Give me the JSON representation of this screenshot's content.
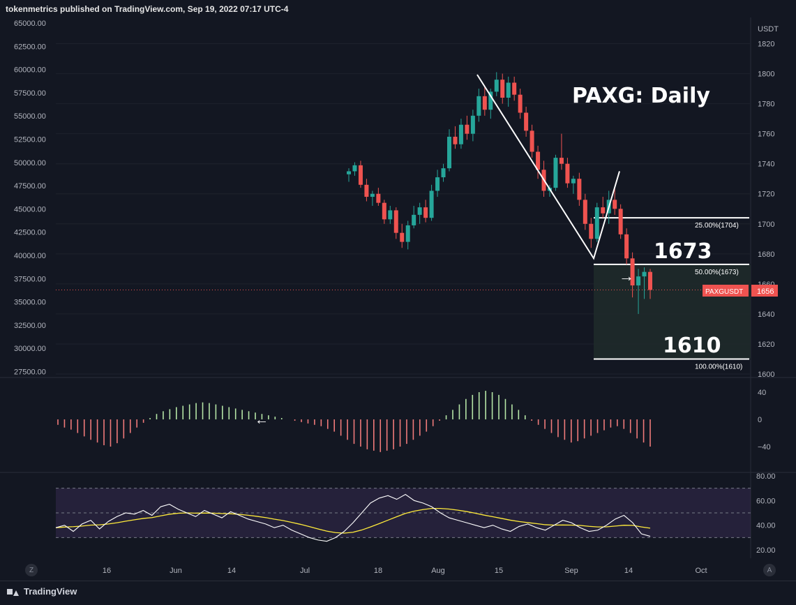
{
  "publisher_line": "tokenmetrics published on TradingView.com, Sep 19, 2022 07:17 UTC-4",
  "chart_title": "PAXG: Daily",
  "currency_label": "USDT",
  "symbol_tag": "PAXGUSDT",
  "last_price": "1656",
  "big_labels": {
    "upper": "1673",
    "lower": "1610"
  },
  "fib_levels": [
    {
      "label": "25.00%(1704)",
      "price": 1704
    },
    {
      "label": "50.00%(1673)",
      "price": 1673
    },
    {
      "label": "100.00%(1610)",
      "price": 1610
    }
  ],
  "colors": {
    "up": "#26a69a",
    "down": "#ef5350",
    "bg": "#131722",
    "grid": "#1e222d",
    "text": "#b2b5be",
    "hist_pos": "#b5e6a6",
    "hist_neg": "#f07a7a",
    "rsi_line": "#ffffff",
    "rsi_ma": "#ffeb3b",
    "rsi_band": "#3b2e58"
  },
  "chart_data": {
    "type": "candlestick",
    "price_axis_right": {
      "ticks": [
        "1820",
        "1800",
        "1780",
        "1760",
        "1740",
        "1720",
        "1700",
        "1680",
        "1660",
        "1640",
        "1620",
        "1600"
      ],
      "range": [
        1600,
        1830
      ]
    },
    "price_axis_left": {
      "ticks": [
        "65000.00",
        "62500.00",
        "60000.00",
        "57500.00",
        "55000.00",
        "52500.00",
        "50000.00",
        "47500.00",
        "45000.00",
        "42500.00",
        "40000.00",
        "37500.00",
        "35000.00",
        "32500.00",
        "30000.00",
        "27500.00"
      ]
    },
    "x_ticks": [
      "16",
      "Jun",
      "14",
      "Jul",
      "18",
      "Aug",
      "15",
      "Sep",
      "14",
      "Oct"
    ],
    "candles": [
      {
        "o": 1733,
        "h": 1737,
        "l": 1728,
        "c": 1735
      },
      {
        "o": 1735,
        "h": 1741,
        "l": 1732,
        "c": 1739
      },
      {
        "o": 1739,
        "h": 1742,
        "l": 1724,
        "c": 1726
      },
      {
        "o": 1726,
        "h": 1730,
        "l": 1715,
        "c": 1718
      },
      {
        "o": 1718,
        "h": 1722,
        "l": 1712,
        "c": 1720
      },
      {
        "o": 1720,
        "h": 1724,
        "l": 1712,
        "c": 1714
      },
      {
        "o": 1714,
        "h": 1716,
        "l": 1700,
        "c": 1703
      },
      {
        "o": 1703,
        "h": 1712,
        "l": 1700,
        "c": 1709
      },
      {
        "o": 1709,
        "h": 1711,
        "l": 1690,
        "c": 1694
      },
      {
        "o": 1694,
        "h": 1700,
        "l": 1684,
        "c": 1688
      },
      {
        "o": 1688,
        "h": 1702,
        "l": 1683,
        "c": 1699
      },
      {
        "o": 1699,
        "h": 1712,
        "l": 1697,
        "c": 1706
      },
      {
        "o": 1706,
        "h": 1714,
        "l": 1700,
        "c": 1711
      },
      {
        "o": 1711,
        "h": 1716,
        "l": 1701,
        "c": 1704
      },
      {
        "o": 1704,
        "h": 1726,
        "l": 1702,
        "c": 1722
      },
      {
        "o": 1722,
        "h": 1736,
        "l": 1718,
        "c": 1731
      },
      {
        "o": 1731,
        "h": 1740,
        "l": 1728,
        "c": 1737
      },
      {
        "o": 1737,
        "h": 1763,
        "l": 1735,
        "c": 1758
      },
      {
        "o": 1758,
        "h": 1765,
        "l": 1750,
        "c": 1753
      },
      {
        "o": 1753,
        "h": 1770,
        "l": 1750,
        "c": 1766
      },
      {
        "o": 1766,
        "h": 1772,
        "l": 1756,
        "c": 1760
      },
      {
        "o": 1760,
        "h": 1776,
        "l": 1755,
        "c": 1772
      },
      {
        "o": 1772,
        "h": 1790,
        "l": 1768,
        "c": 1785
      },
      {
        "o": 1785,
        "h": 1792,
        "l": 1772,
        "c": 1776
      },
      {
        "o": 1776,
        "h": 1790,
        "l": 1770,
        "c": 1788
      },
      {
        "o": 1788,
        "h": 1801,
        "l": 1785,
        "c": 1796
      },
      {
        "o": 1796,
        "h": 1800,
        "l": 1780,
        "c": 1784
      },
      {
        "o": 1784,
        "h": 1798,
        "l": 1778,
        "c": 1794
      },
      {
        "o": 1794,
        "h": 1798,
        "l": 1782,
        "c": 1786
      },
      {
        "o": 1786,
        "h": 1790,
        "l": 1770,
        "c": 1774
      },
      {
        "o": 1774,
        "h": 1778,
        "l": 1758,
        "c": 1762
      },
      {
        "o": 1762,
        "h": 1766,
        "l": 1744,
        "c": 1748
      },
      {
        "o": 1748,
        "h": 1752,
        "l": 1730,
        "c": 1736
      },
      {
        "o": 1736,
        "h": 1742,
        "l": 1718,
        "c": 1722
      },
      {
        "o": 1722,
        "h": 1726,
        "l": 1718,
        "c": 1724
      },
      {
        "o": 1724,
        "h": 1746,
        "l": 1722,
        "c": 1744
      },
      {
        "o": 1744,
        "h": 1760,
        "l": 1736,
        "c": 1740
      },
      {
        "o": 1740,
        "h": 1744,
        "l": 1724,
        "c": 1727
      },
      {
        "o": 1727,
        "h": 1732,
        "l": 1720,
        "c": 1730
      },
      {
        "o": 1730,
        "h": 1734,
        "l": 1712,
        "c": 1716
      },
      {
        "o": 1716,
        "h": 1720,
        "l": 1696,
        "c": 1700
      },
      {
        "o": 1700,
        "h": 1704,
        "l": 1684,
        "c": 1690
      },
      {
        "o": 1690,
        "h": 1714,
        "l": 1688,
        "c": 1711
      },
      {
        "o": 1711,
        "h": 1718,
        "l": 1704,
        "c": 1707
      },
      {
        "o": 1707,
        "h": 1722,
        "l": 1700,
        "c": 1716
      },
      {
        "o": 1716,
        "h": 1724,
        "l": 1706,
        "c": 1710
      },
      {
        "o": 1710,
        "h": 1713,
        "l": 1690,
        "c": 1693
      },
      {
        "o": 1693,
        "h": 1697,
        "l": 1673,
        "c": 1677
      },
      {
        "o": 1677,
        "h": 1681,
        "l": 1651,
        "c": 1659
      },
      {
        "o": 1659,
        "h": 1670,
        "l": 1640,
        "c": 1665
      },
      {
        "o": 1665,
        "h": 1671,
        "l": 1650,
        "c": 1668
      },
      {
        "o": 1668,
        "h": 1670,
        "l": 1650,
        "c": 1656
      }
    ],
    "macd_histogram": [
      -8,
      -12,
      -15,
      -20,
      -25,
      -30,
      -34,
      -38,
      -40,
      -35,
      -28,
      -20,
      -12,
      -5,
      2,
      8,
      12,
      15,
      18,
      20,
      22,
      24,
      25,
      24,
      22,
      20,
      18,
      16,
      14,
      12,
      10,
      8,
      6,
      4,
      2,
      0,
      -2,
      -4,
      -6,
      -8,
      -10,
      -14,
      -18,
      -24,
      -30,
      -36,
      -40,
      -44,
      -46,
      -48,
      -46,
      -44,
      -40,
      -36,
      -30,
      -24,
      -18,
      -10,
      -2,
      6,
      14,
      22,
      30,
      36,
      40,
      42,
      40,
      36,
      30,
      22,
      14,
      6,
      -2,
      -8,
      -14,
      -20,
      -26,
      -30,
      -34,
      -32,
      -28,
      -24,
      -20,
      -16,
      -12,
      -10,
      -14,
      -20,
      -28,
      -34,
      -40
    ],
    "macd_axis_ticks": [
      "40",
      "0",
      "−40"
    ],
    "rsi": [
      38,
      40,
      35,
      41,
      44,
      37,
      43,
      47,
      50,
      49,
      52,
      48,
      55,
      57,
      53,
      50,
      47,
      52,
      49,
      46,
      51,
      48,
      45,
      43,
      41,
      38,
      40,
      36,
      33,
      30,
      28,
      27,
      30,
      35,
      42,
      50,
      58,
      62,
      64,
      61,
      65,
      60,
      58,
      55,
      50,
      46,
      44,
      42,
      40,
      38,
      40,
      37,
      35,
      39,
      41,
      38,
      36,
      40,
      44,
      42,
      38,
      35,
      36,
      40,
      45,
      48,
      42,
      33,
      31
    ],
    "rsi_ma": [
      38,
      38.5,
      38.8,
      39.3,
      40.1,
      40.3,
      41,
      42,
      43.3,
      44.4,
      45.5,
      46.2,
      47.6,
      48.9,
      49.7,
      50,
      49.8,
      49.9,
      49.8,
      49.5,
      49.3,
      48.8,
      48.1,
      47.2,
      46.2,
      44.9,
      43.8,
      42.3,
      40.7,
      38.9,
      37,
      35.2,
      34,
      33.6,
      34.3,
      36.1,
      38.6,
      41.3,
      44.1,
      46.9,
      49.6,
      51.4,
      52.7,
      53.6,
      53.6,
      53.1,
      52.2,
      51.1,
      49.7,
      48.2,
      46.9,
      45.5,
      44.1,
      43,
      42.1,
      41.3,
      40.4,
      40.1,
      40.2,
      40.1,
      39.8,
      39.1,
      38.6,
      38.7,
      39.3,
      40,
      39.9,
      38.6,
      37.6
    ],
    "rsi_axis_ticks": [
      "80.00",
      "60.00",
      "40.00",
      "20.00"
    ]
  },
  "buttons": {
    "z_label": "Z",
    "a_label": "A"
  },
  "footer_brand": "TradingView",
  "annotations": {
    "left_arrow": "←",
    "right_arrow": "→"
  }
}
